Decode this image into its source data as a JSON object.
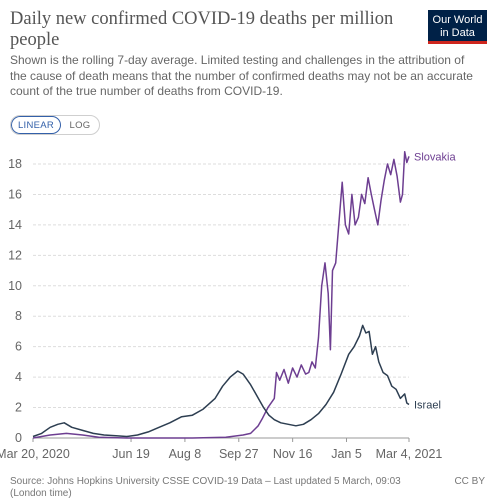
{
  "header": {
    "title": "Daily new confirmed COVID-19 deaths per million people",
    "subtitle": "Shown is the rolling 7-day average. Limited testing and challenges in the attribution of the cause of death means that the number of confirmed deaths may not be an accurate count of the true number of deaths from COVID-19.",
    "logo_line1": "Our World",
    "logo_line2": "in Data"
  },
  "controls": {
    "linear_label": "LINEAR",
    "log_label": "LOG",
    "selected": "LINEAR"
  },
  "footer": {
    "source": "Source: Johns Hopkins University CSSE COVID-19 Data – Last updated 5 March, 09:03 (London time)",
    "license": "CC BY"
  },
  "colors": {
    "Slovakia": "#6d3e91",
    "Israel": "#2d3e51",
    "grid": "#dddddd",
    "axis_text": "#666666"
  },
  "chart_data": {
    "type": "line",
    "title": "Daily new confirmed COVID-19 deaths per million people",
    "x_type": "date",
    "xlim": [
      "2020-03-20",
      "2021-03-04"
    ],
    "ylim": [
      0,
      18
    ],
    "yticks": [
      0,
      2,
      4,
      6,
      8,
      10,
      12,
      14,
      16,
      18
    ],
    "grid": true,
    "x_tick_labels": [
      {
        "date": "2020-03-20",
        "label": "Mar 20, 2020"
      },
      {
        "date": "2020-06-19",
        "label": "Jun 19"
      },
      {
        "date": "2020-08-08",
        "label": "Aug 8"
      },
      {
        "date": "2020-09-27",
        "label": "Sep 27"
      },
      {
        "date": "2020-11-16",
        "label": "Nov 16"
      },
      {
        "date": "2021-01-05",
        "label": "Jan 5"
      },
      {
        "date": "2021-03-04",
        "label": "Mar 4, 2021"
      }
    ],
    "series": [
      {
        "name": "Slovakia",
        "x": [
          "2020-03-20",
          "2020-04-05",
          "2020-04-20",
          "2020-05-05",
          "2020-05-20",
          "2020-06-15",
          "2020-07-15",
          "2020-08-15",
          "2020-09-15",
          "2020-10-01",
          "2020-10-08",
          "2020-10-15",
          "2020-10-19",
          "2020-10-24",
          "2020-10-30",
          "2020-11-01",
          "2020-11-04",
          "2020-11-08",
          "2020-11-12",
          "2020-11-16",
          "2020-11-20",
          "2020-11-24",
          "2020-11-28",
          "2020-12-01",
          "2020-12-04",
          "2020-12-07",
          "2020-12-10",
          "2020-12-13",
          "2020-12-16",
          "2020-12-19",
          "2020-12-21",
          "2020-12-23",
          "2020-12-26",
          "2020-12-29",
          "2021-01-01",
          "2021-01-04",
          "2021-01-07",
          "2021-01-10",
          "2021-01-13",
          "2021-01-16",
          "2021-01-19",
          "2021-01-22",
          "2021-01-25",
          "2021-01-28",
          "2021-01-31",
          "2021-02-03",
          "2021-02-06",
          "2021-02-09",
          "2021-02-12",
          "2021-02-15",
          "2021-02-18",
          "2021-02-21",
          "2021-02-24",
          "2021-02-26",
          "2021-02-28",
          "2021-03-02",
          "2021-03-04"
        ],
        "y": [
          0,
          0.2,
          0.3,
          0.2,
          0.05,
          0,
          0,
          0,
          0.05,
          0.2,
          0.3,
          0.8,
          1.3,
          2.0,
          2.6,
          4.3,
          3.8,
          4.5,
          3.6,
          4.6,
          4.0,
          4.8,
          4.2,
          4.3,
          5.0,
          4.6,
          6.6,
          10.0,
          11.5,
          9.5,
          5.8,
          11.0,
          11.5,
          14.2,
          16.8,
          14.0,
          13.4,
          16.0,
          14.0,
          14.5,
          16.0,
          15.4,
          17.1,
          16.0,
          15.0,
          14.0,
          15.6,
          16.9,
          18.0,
          17.3,
          18.3,
          17.2,
          15.5,
          16.0,
          18.8,
          18.1,
          18.5
        ]
      },
      {
        "name": "Israel",
        "x": [
          "2020-03-20",
          "2020-03-28",
          "2020-04-05",
          "2020-04-12",
          "2020-04-18",
          "2020-04-25",
          "2020-05-05",
          "2020-05-15",
          "2020-05-25",
          "2020-06-05",
          "2020-06-15",
          "2020-06-25",
          "2020-07-05",
          "2020-07-15",
          "2020-07-25",
          "2020-08-05",
          "2020-08-15",
          "2020-08-25",
          "2020-09-05",
          "2020-09-12",
          "2020-09-19",
          "2020-09-26",
          "2020-10-01",
          "2020-10-04",
          "2020-10-08",
          "2020-10-12",
          "2020-10-16",
          "2020-10-20",
          "2020-10-25",
          "2020-10-30",
          "2020-11-05",
          "2020-11-12",
          "2020-11-19",
          "2020-11-26",
          "2020-12-03",
          "2020-12-10",
          "2020-12-17",
          "2020-12-24",
          "2020-12-31",
          "2021-01-07",
          "2021-01-12",
          "2021-01-17",
          "2021-01-20",
          "2021-01-23",
          "2021-01-26",
          "2021-01-29",
          "2021-02-01",
          "2021-02-04",
          "2021-02-08",
          "2021-02-12",
          "2021-02-16",
          "2021-02-20",
          "2021-02-24",
          "2021-02-28",
          "2021-03-02",
          "2021-03-04"
        ],
        "y": [
          0.1,
          0.3,
          0.7,
          0.9,
          1.0,
          0.7,
          0.5,
          0.3,
          0.2,
          0.15,
          0.1,
          0.2,
          0.4,
          0.7,
          1.0,
          1.4,
          1.5,
          1.9,
          2.6,
          3.4,
          4.0,
          4.4,
          4.2,
          3.9,
          3.5,
          3.0,
          2.5,
          2.0,
          1.5,
          1.2,
          1.0,
          0.9,
          0.8,
          0.9,
          1.2,
          1.6,
          2.2,
          3.0,
          4.2,
          5.5,
          6.0,
          6.7,
          7.4,
          6.9,
          7.0,
          5.5,
          6.0,
          5.0,
          4.3,
          4.1,
          3.4,
          3.2,
          2.6,
          2.9,
          2.3,
          2.2
        ]
      }
    ]
  }
}
